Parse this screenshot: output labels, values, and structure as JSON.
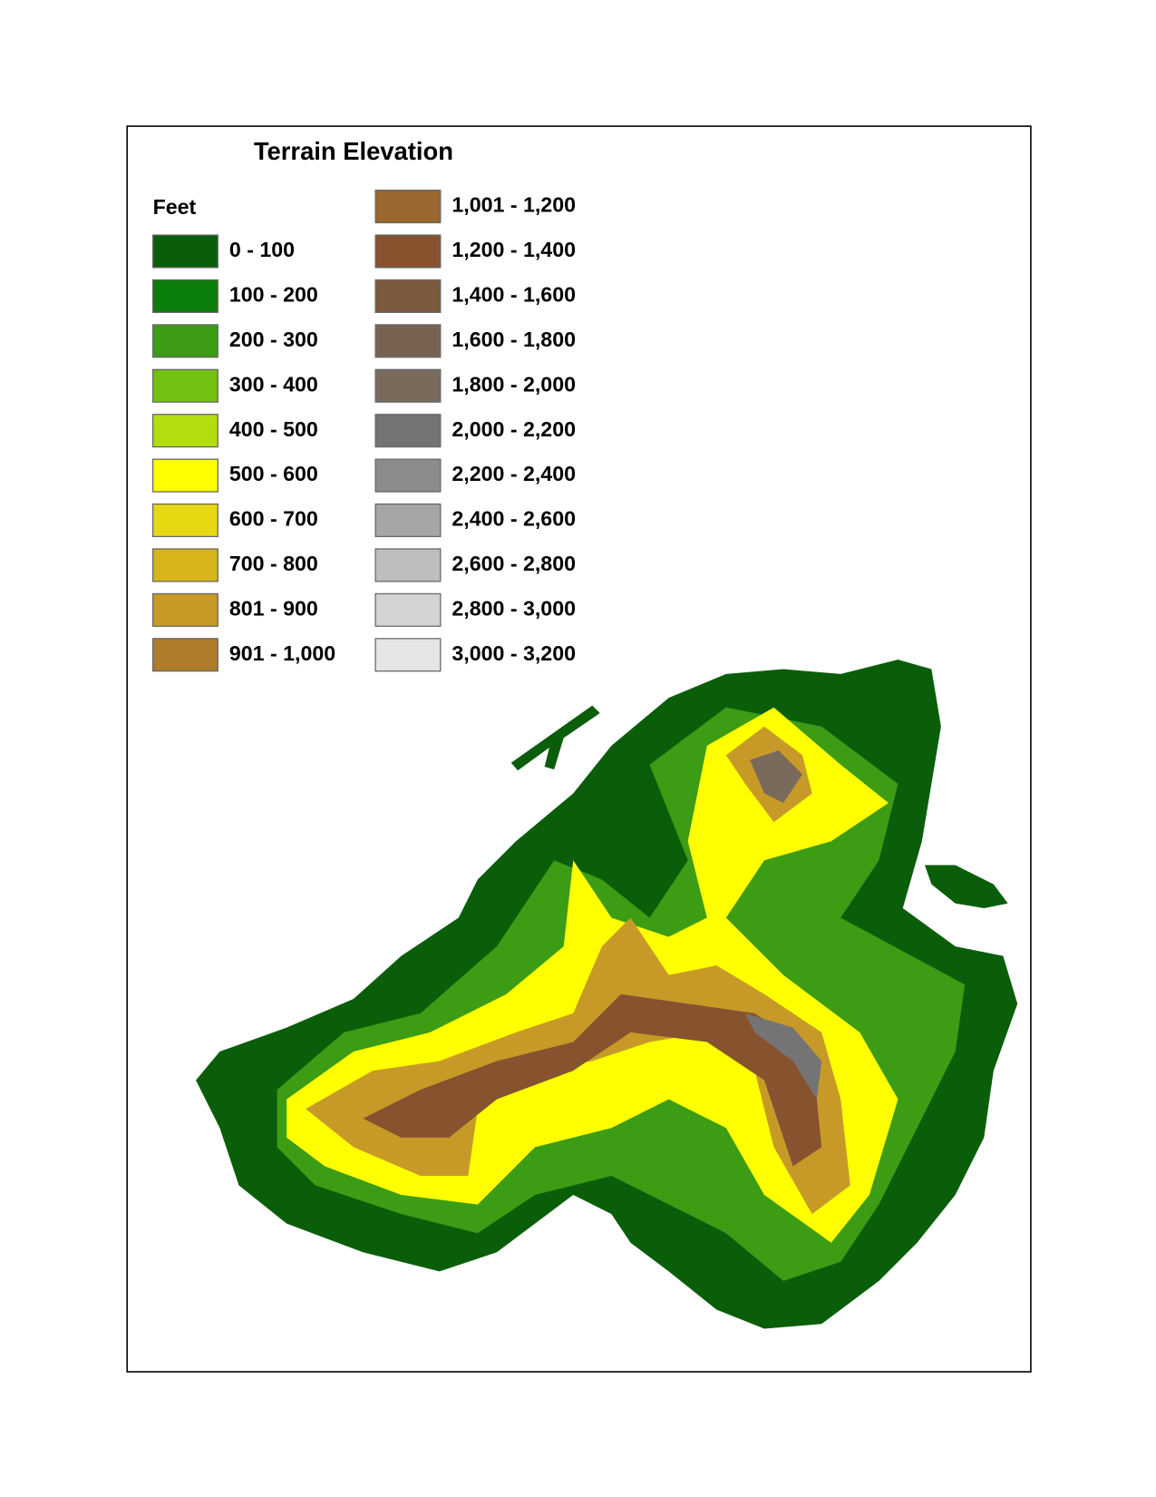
{
  "title": "Terrain Elevation",
  "legend": {
    "title": "Feet",
    "items": [
      {
        "label": "0 - 100",
        "color": "#0a5e0a"
      },
      {
        "label": "100 - 200",
        "color": "#0a7d0a"
      },
      {
        "label": "200 - 300",
        "color": "#3c9c14"
      },
      {
        "label": "300 - 400",
        "color": "#72c010"
      },
      {
        "label": "400 - 500",
        "color": "#b4dd10"
      },
      {
        "label": "500 - 600",
        "color": "#ffff00"
      },
      {
        "label": "600 - 700",
        "color": "#e8d812"
      },
      {
        "label": "700 - 800",
        "color": "#d6b41a"
      },
      {
        "label": "801 - 900",
        "color": "#c79a28"
      },
      {
        "label": "901 - 1,000",
        "color": "#ad7c2c"
      },
      {
        "label": "1,001 - 1,200",
        "color": "#9a672e"
      },
      {
        "label": "1,200 - 1,400",
        "color": "#86532e"
      },
      {
        "label": "1,400 - 1,600",
        "color": "#7c5a3e"
      },
      {
        "label": "1,600 - 1,800",
        "color": "#786252"
      },
      {
        "label": "1,800 - 2,000",
        "color": "#7a6a5c"
      },
      {
        "label": "2,000 - 2,200",
        "color": "#747474"
      },
      {
        "label": "2,200 - 2,400",
        "color": "#8c8c8c"
      },
      {
        "label": "2,400 - 2,600",
        "color": "#a6a6a6"
      },
      {
        "label": "2,600 - 2,800",
        "color": "#bebebe"
      },
      {
        "label": "2,800 - 3,000",
        "color": "#d4d4d4"
      },
      {
        "label": "3,000 - 3,200",
        "color": "#e6e6e6"
      }
    ]
  }
}
